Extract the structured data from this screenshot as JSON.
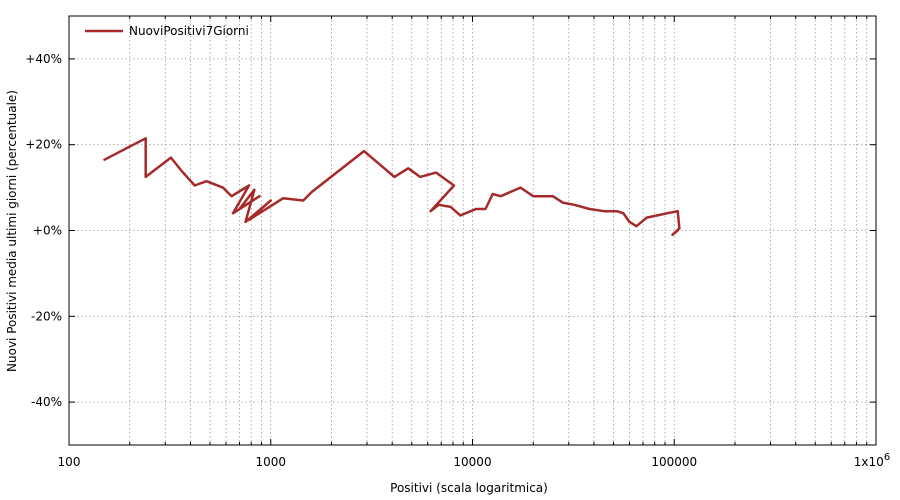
{
  "chart_data": {
    "type": "line",
    "x_scale": "log",
    "xlim": [
      100,
      1000000
    ],
    "ylim": [
      -50,
      50
    ],
    "xlabel": "Positivi (scala logaritmica)",
    "ylabel": "Nuovi Positivi media ultimi giorni (percentuale)",
    "x_tick_labels": [
      {
        "value": 100,
        "label": "100"
      },
      {
        "value": 1000,
        "label": "1000"
      },
      {
        "value": 10000,
        "label": "10000"
      },
      {
        "value": 100000,
        "label": "100000"
      },
      {
        "value": 1000000,
        "label": "1x10",
        "superscript": "6"
      }
    ],
    "y_tick_labels": [
      {
        "value": 40,
        "label": "+40%"
      },
      {
        "value": 20,
        "label": "+20%"
      },
      {
        "value": 0,
        "label": "+0%"
      },
      {
        "value": -20,
        "label": "-20%"
      },
      {
        "value": -40,
        "label": "-40%"
      }
    ],
    "grid": true,
    "legend_position": "top-left",
    "series": [
      {
        "name": "NuoviPositivi7Giorni",
        "color": "#a52a2a",
        "points": [
          [
            150,
            16.5
          ],
          [
            240,
            21.5
          ],
          [
            240,
            12.5
          ],
          [
            320,
            17
          ],
          [
            360,
            14
          ],
          [
            420,
            10.5
          ],
          [
            480,
            11.5
          ],
          [
            580,
            10
          ],
          [
            640,
            8
          ],
          [
            780,
            10.5
          ],
          [
            650,
            4
          ],
          [
            880,
            8
          ],
          [
            700,
            5
          ],
          [
            830,
            9.5
          ],
          [
            750,
            2
          ],
          [
            1000,
            7
          ],
          [
            780,
            2.5
          ],
          [
            1150,
            7.5
          ],
          [
            1450,
            7
          ],
          [
            1600,
            9
          ],
          [
            2900,
            18.5
          ],
          [
            4100,
            12.5
          ],
          [
            4800,
            14.5
          ],
          [
            5500,
            12.5
          ],
          [
            6600,
            13.5
          ],
          [
            8100,
            10.5
          ],
          [
            6200,
            4.5
          ],
          [
            6800,
            6
          ],
          [
            7800,
            5.5
          ],
          [
            8700,
            3.5
          ],
          [
            10400,
            5
          ],
          [
            11600,
            5
          ],
          [
            12600,
            8.5
          ],
          [
            13800,
            8
          ],
          [
            17300,
            10
          ],
          [
            20000,
            8
          ],
          [
            25000,
            8
          ],
          [
            28000,
            6.5
          ],
          [
            32000,
            6
          ],
          [
            38000,
            5
          ],
          [
            45000,
            4.5
          ],
          [
            52000,
            4.5
          ],
          [
            56000,
            4
          ],
          [
            60000,
            2
          ],
          [
            65000,
            1
          ],
          [
            73000,
            3
          ],
          [
            82000,
            3.5
          ],
          [
            92000,
            4
          ],
          [
            104000,
            4.5
          ],
          [
            106000,
            0.5
          ],
          [
            98000,
            -1
          ],
          [
            104000,
            0
          ]
        ]
      }
    ]
  }
}
